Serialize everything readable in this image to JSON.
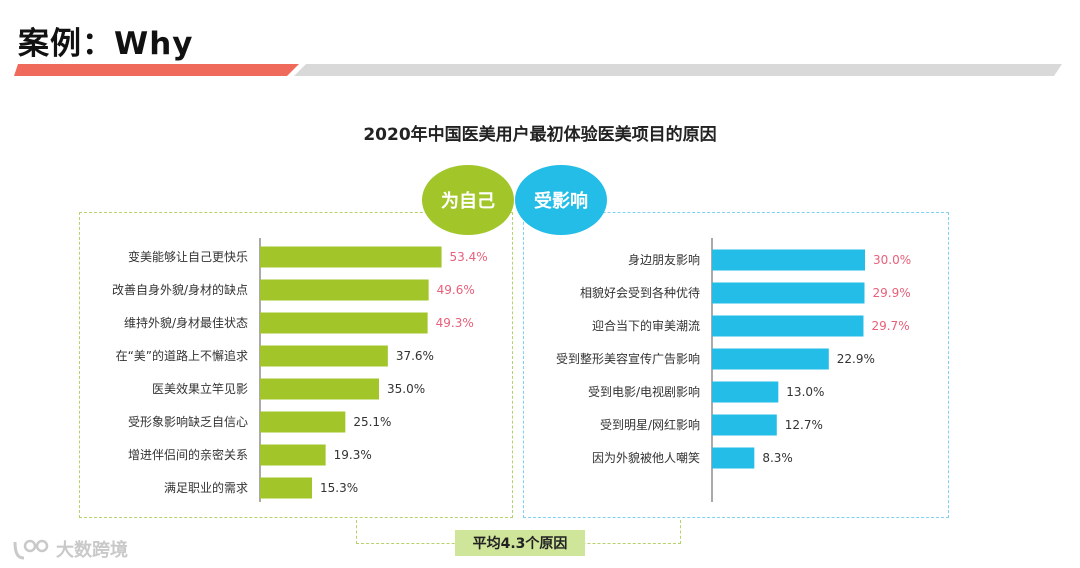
{
  "slide": {
    "title": "案例：Why",
    "accent_color": "#ef6a5a"
  },
  "watermark": {
    "text": "大数跨境",
    "icon": "logo-icon"
  },
  "chart_data": {
    "type": "bar",
    "orientation": "horizontal",
    "title": "2020年中国医美用户最初体验医美项目的原因",
    "average_label": "平均4.3个原因",
    "value_suffix": "%",
    "groups": [
      {
        "name": "为自己",
        "color": "#a2c62a",
        "highlight_color": "#e8607a",
        "normal_color": "#333333",
        "highlight_count": 3,
        "categories": [
          "变美能够让自己更快乐",
          "改善自身外貌/身材的缺点",
          "维持外貌/身材最佳状态",
          "在“美”的道路上不懈追求",
          "医美效果立竿见影",
          "受形象影响缺乏自信心",
          "增进伴侣间的亲密关系",
          "满足职业的需求"
        ],
        "values": [
          53.4,
          49.6,
          49.3,
          37.6,
          35.0,
          25.1,
          19.3,
          15.3
        ]
      },
      {
        "name": "受影响",
        "color": "#23bde8",
        "highlight_color": "#e8607a",
        "normal_color": "#333333",
        "highlight_count": 3,
        "categories": [
          "身边朋友影响",
          "相貌好会受到各种优待",
          "迎合当下的审美潮流",
          "受到整形美容宣传广告影响",
          "受到电影/电视剧影响",
          "受到明星/网红影响",
          "因为外貌被他人嘲笑"
        ],
        "values": [
          30.0,
          29.9,
          29.7,
          22.9,
          13.0,
          12.7,
          8.3
        ]
      }
    ]
  }
}
